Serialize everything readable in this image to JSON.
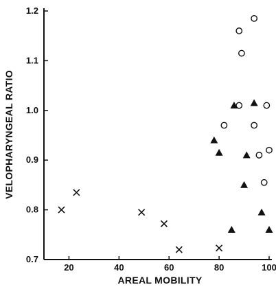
{
  "chart_data": {
    "type": "scatter",
    "title": "",
    "xlabel": "AREAL MOBILITY",
    "ylabel": "VELOPHARYNGEAL RATIO",
    "xlim": [
      10,
      100
    ],
    "ylim": [
      0.7,
      1.2
    ],
    "x_ticks": [
      20,
      40,
      60,
      80,
      100
    ],
    "x_tick_labels": [
      "20",
      "40",
      "60",
      "80",
      "100"
    ],
    "y_ticks": [
      0.7,
      0.8,
      0.9,
      1.0,
      1.1,
      1.2
    ],
    "y_tick_labels": [
      "0.7",
      "0.8",
      "0.9",
      "1.0",
      "1.1",
      "1.2"
    ],
    "grid": false,
    "series": [
      {
        "marker": "cross",
        "points": [
          {
            "x": 17,
            "y": 0.8
          },
          {
            "x": 23,
            "y": 0.835
          },
          {
            "x": 49,
            "y": 0.795
          },
          {
            "x": 58,
            "y": 0.772
          },
          {
            "x": 64,
            "y": 0.72
          },
          {
            "x": 80,
            "y": 0.723
          }
        ]
      },
      {
        "marker": "filled-triangle",
        "points": [
          {
            "x": 78,
            "y": 0.94
          },
          {
            "x": 80,
            "y": 0.915
          },
          {
            "x": 85,
            "y": 0.76
          },
          {
            "x": 86,
            "y": 1.01
          },
          {
            "x": 90,
            "y": 0.85
          },
          {
            "x": 91,
            "y": 0.91
          },
          {
            "x": 94,
            "y": 1.015
          },
          {
            "x": 97,
            "y": 0.795
          },
          {
            "x": 100,
            "y": 0.76
          }
        ]
      },
      {
        "marker": "open-circle",
        "points": [
          {
            "x": 88,
            "y": 1.16
          },
          {
            "x": 89,
            "y": 1.115
          },
          {
            "x": 94,
            "y": 1.185
          },
          {
            "x": 82,
            "y": 0.97
          },
          {
            "x": 88,
            "y": 1.01
          },
          {
            "x": 94,
            "y": 0.97
          },
          {
            "x": 99,
            "y": 1.01
          },
          {
            "x": 96,
            "y": 0.91
          },
          {
            "x": 100,
            "y": 0.92
          },
          {
            "x": 98,
            "y": 0.855
          }
        ]
      }
    ]
  }
}
